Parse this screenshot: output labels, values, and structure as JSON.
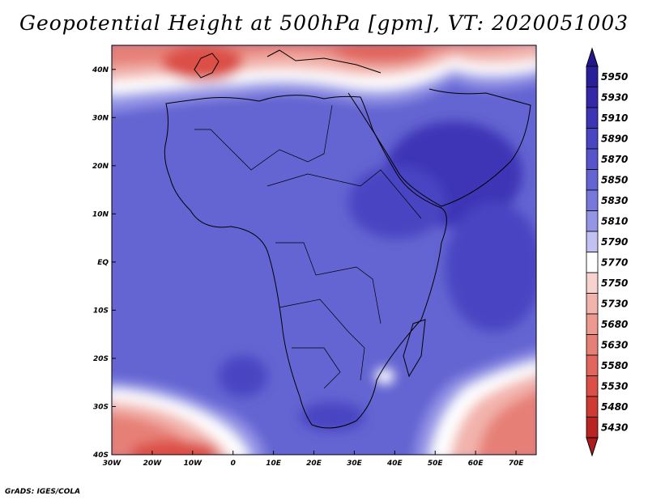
{
  "title": "Geopotential Height at 500hPa [gpm], VT: 2020051003",
  "credit": "GrADS: IGES/COLA",
  "map": {
    "lon_range": [
      -30,
      75
    ],
    "lat_range": [
      -40,
      45
    ],
    "lon_ticks": [
      {
        "value": -30,
        "label": "30W"
      },
      {
        "value": -20,
        "label": "20W"
      },
      {
        "value": -10,
        "label": "10W"
      },
      {
        "value": 0,
        "label": "0"
      },
      {
        "value": 10,
        "label": "10E"
      },
      {
        "value": 20,
        "label": "20E"
      },
      {
        "value": 30,
        "label": "30E"
      },
      {
        "value": 40,
        "label": "40E"
      },
      {
        "value": 50,
        "label": "50E"
      },
      {
        "value": 60,
        "label": "60E"
      },
      {
        "value": 70,
        "label": "70E"
      }
    ],
    "lat_ticks": [
      {
        "value": 40,
        "label": "40N"
      },
      {
        "value": 30,
        "label": "30N"
      },
      {
        "value": 20,
        "label": "20N"
      },
      {
        "value": 10,
        "label": "10N"
      },
      {
        "value": 0,
        "label": "EQ"
      },
      {
        "value": -10,
        "label": "10S"
      },
      {
        "value": -20,
        "label": "20S"
      },
      {
        "value": -30,
        "label": "30S"
      },
      {
        "value": -40,
        "label": "40S"
      }
    ]
  },
  "colorbar": {
    "levels": [
      {
        "label": "5950",
        "color": "#2a1f9a"
      },
      {
        "label": "5930",
        "color": "#3527a8"
      },
      {
        "label": "5910",
        "color": "#3d34b6"
      },
      {
        "label": "5890",
        "color": "#4a45c2"
      },
      {
        "label": "5870",
        "color": "#5755cb"
      },
      {
        "label": "5850",
        "color": "#6464d2"
      },
      {
        "label": "5830",
        "color": "#7878da"
      },
      {
        "label": "5810",
        "color": "#9595e6"
      },
      {
        "label": "5790",
        "color": "#c2c2f2"
      },
      {
        "label": "5770",
        "color": "#ffffff"
      },
      {
        "label": "5750",
        "color": "#f7d3d0"
      },
      {
        "label": "5730",
        "color": "#f2b3ac"
      },
      {
        "label": "5680",
        "color": "#ec9990"
      },
      {
        "label": "5630",
        "color": "#e68077"
      },
      {
        "label": "5580",
        "color": "#e0665e"
      },
      {
        "label": "5530",
        "color": "#db4f47"
      },
      {
        "label": "5480",
        "color": "#cf3a33"
      },
      {
        "label": "5430",
        "color": "#b82522"
      }
    ],
    "top_triangle_color": "#24168c",
    "bottom_triangle_color": "#aa1c1c"
  }
}
